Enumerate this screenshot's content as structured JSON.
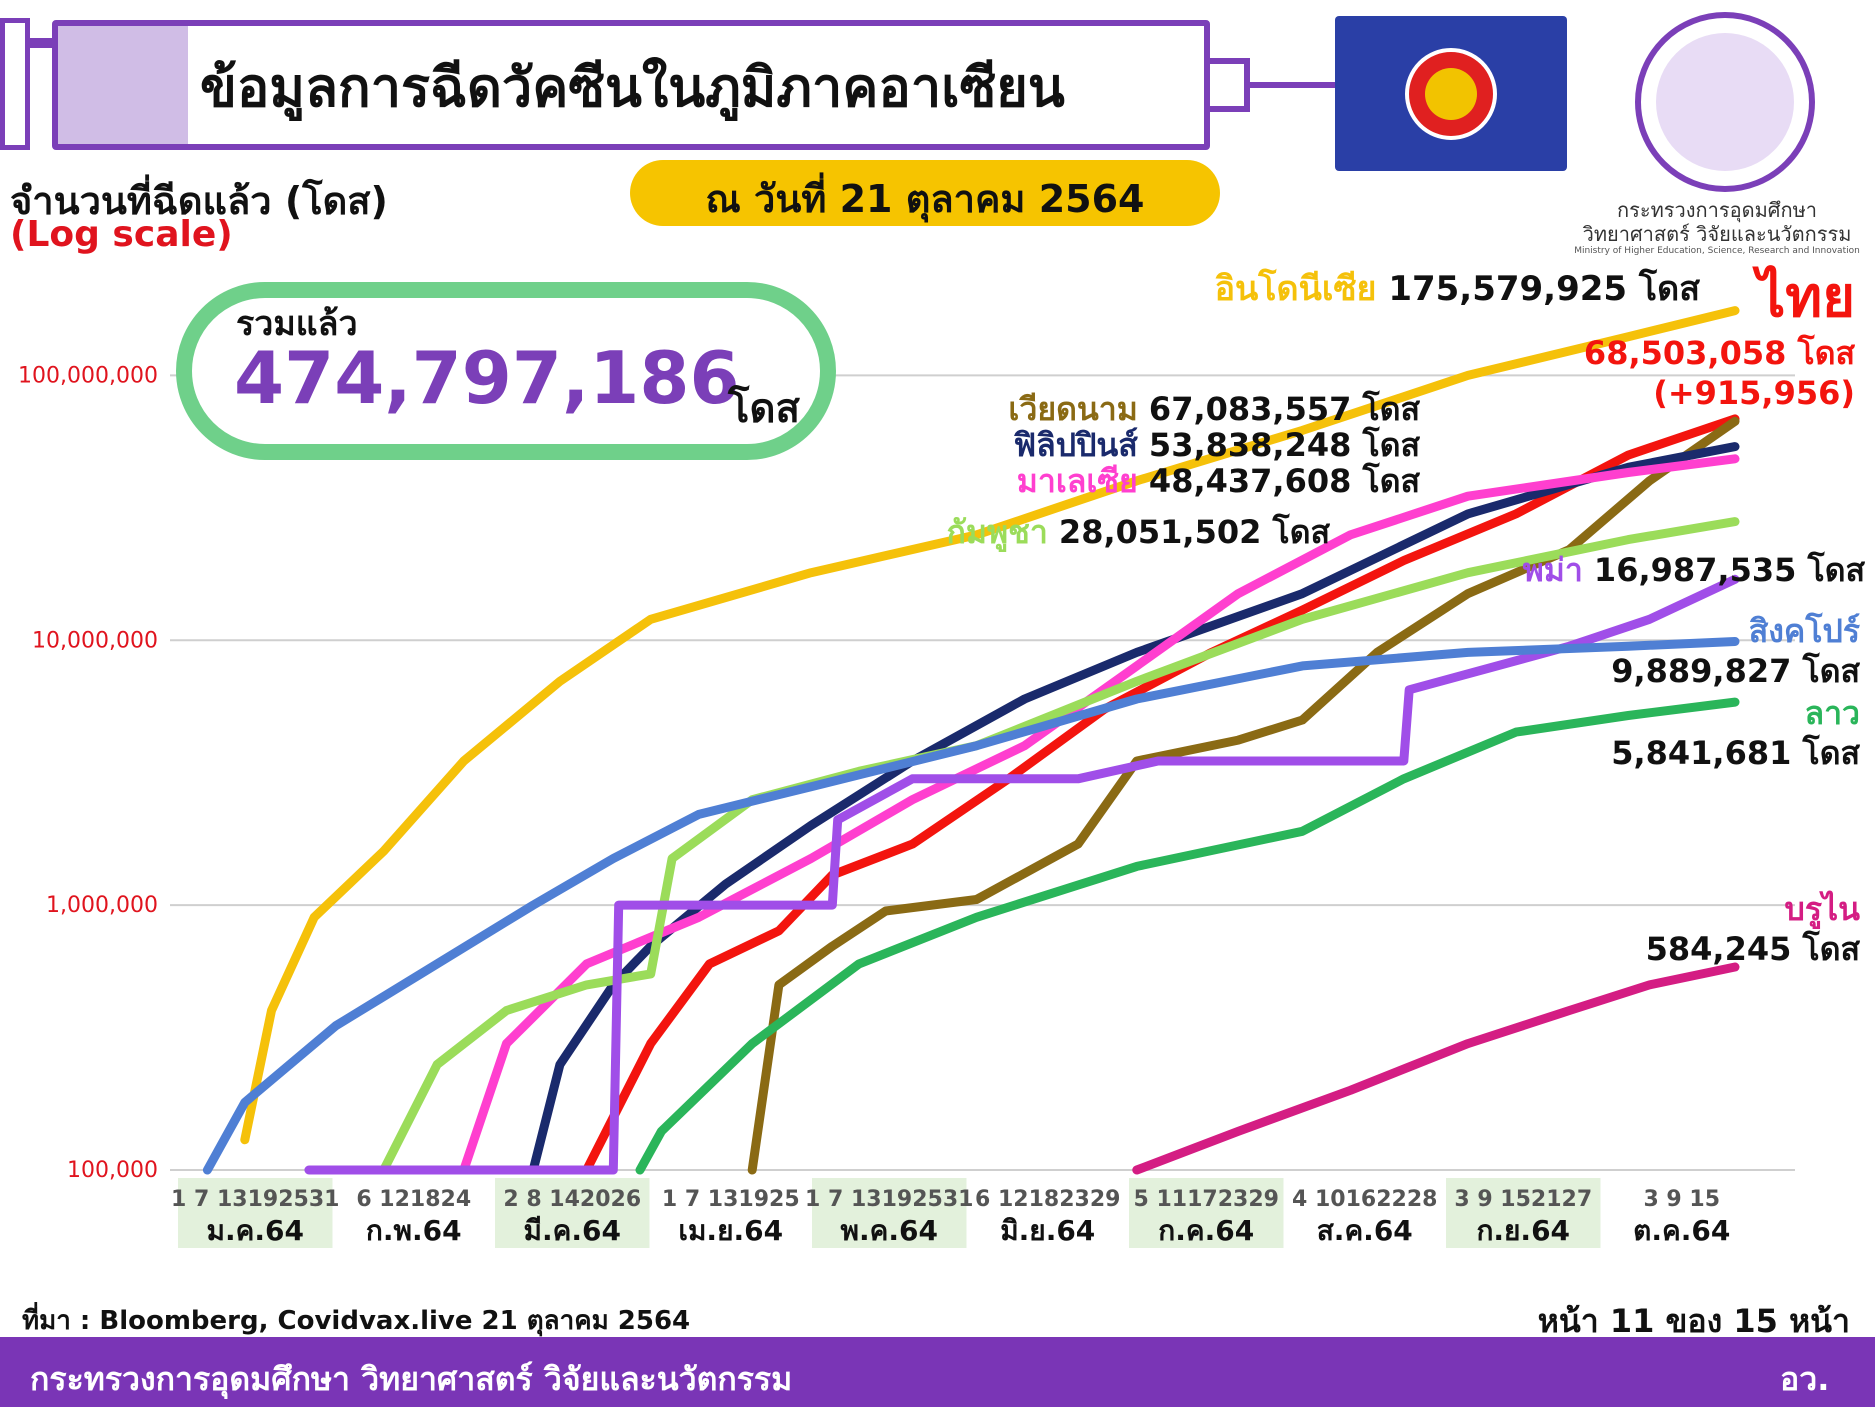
{
  "header": {
    "title": "ข้อมูลการฉีดวัคซีนในภูมิภาคอาเซียน"
  },
  "ministry": {
    "name_line1": "กระทรวงการอุดมศึกษา",
    "name_line2": "วิทยาศาสตร์ วิจัยและนวัตกรรม",
    "name_en": "Ministry of Higher Education, Science, Research and Innovation"
  },
  "axis": {
    "ylabel": "จำนวนที่ฉีดแล้ว (โดส)",
    "scale_note": "(Log scale)"
  },
  "date": "ณ วันที่ 21 ตุลาคม 2564",
  "total": {
    "label": "รวมแล้ว",
    "value": "474,797,186",
    "unit": "โดส"
  },
  "footer": {
    "source": "ที่มา : Bloomberg, Covidvax.live 21 ตุลาคม 2564",
    "page": "หน้า 11 ของ 15 หน้า",
    "org": "กระทรวงการอุดมศึกษา วิทยาศาสตร์ วิจัยและนวัตกรรม",
    "org_short": "อว."
  },
  "colors": {
    "accent_purple": "#7b3fb8",
    "asean_blue": "#2a3fa6",
    "date_pill": "#f6c400",
    "total_border": "#6fd08a",
    "footer": "#7a35b6"
  },
  "chart_data": {
    "type": "line",
    "yscale": "log",
    "ylim": [
      100000,
      250000000
    ],
    "yticks": [
      100000,
      1000000,
      10000000,
      100000000
    ],
    "ytick_labels": [
      "100,000",
      "1,000,000",
      "10,000,000",
      "100,000,000"
    ],
    "xlim": [
      "2021-01-01",
      "2021-10-21"
    ],
    "months": [
      {
        "label": "ม.ค.64",
        "ticks": "1  7 13192531",
        "shaded": true
      },
      {
        "label": "ก.พ.64",
        "ticks": "6 121824",
        "shaded": false
      },
      {
        "label": "มี.ค.64",
        "ticks": "2  8 142026",
        "shaded": true
      },
      {
        "label": "เม.ย.64",
        "ticks": "1  7 131925",
        "shaded": false
      },
      {
        "label": "พ.ค.64",
        "ticks": "1  7 13192531",
        "shaded": true
      },
      {
        "label": "มิ.ย.64",
        "ticks": "6 12182329",
        "shaded": false
      },
      {
        "label": "ก.ค.64",
        "ticks": "5 11172329",
        "shaded": true
      },
      {
        "label": "ส.ค.64",
        "ticks": "4 10162228",
        "shaded": false
      },
      {
        "label": "ก.ย.64",
        "ticks": "3  9 152127",
        "shaded": true
      },
      {
        "label": "ต.ค.64",
        "ticks": "3  9 15",
        "shaded": false
      }
    ],
    "series": [
      {
        "name": "อินโดนีเซีย",
        "value_label": "175,579,925 โดส",
        "color": "#f5c10a",
        "points": [
          [
            "2021-01-15",
            130000
          ],
          [
            "2021-01-20",
            400000
          ],
          [
            "2021-01-28",
            900000
          ],
          [
            "2021-02-10",
            1600000
          ],
          [
            "2021-02-25",
            3500000
          ],
          [
            "2021-03-15",
            7000000
          ],
          [
            "2021-04-01",
            12000000
          ],
          [
            "2021-05-01",
            18000000
          ],
          [
            "2021-06-01",
            25000000
          ],
          [
            "2021-07-01",
            40000000
          ],
          [
            "2021-08-01",
            62000000
          ],
          [
            "2021-09-01",
            100000000
          ],
          [
            "2021-10-01",
            140000000
          ],
          [
            "2021-10-21",
            175579925
          ]
        ]
      },
      {
        "name": "ไทย",
        "value_label": "68,503,058 โดส",
        "change": "(+915,956)",
        "color": "#f3140e",
        "points": [
          [
            "2021-03-20",
            100000
          ],
          [
            "2021-04-01",
            300000
          ],
          [
            "2021-04-12",
            600000
          ],
          [
            "2021-04-25",
            800000
          ],
          [
            "2021-05-05",
            1300000
          ],
          [
            "2021-05-20",
            1700000
          ],
          [
            "2021-06-07",
            3000000
          ],
          [
            "2021-06-25",
            5500000
          ],
          [
            "2021-07-15",
            9000000
          ],
          [
            "2021-08-01",
            13000000
          ],
          [
            "2021-08-20",
            20000000
          ],
          [
            "2021-09-10",
            30000000
          ],
          [
            "2021-10-01",
            50000000
          ],
          [
            "2021-10-21",
            68503058
          ]
        ]
      },
      {
        "name": "เวียดนาม",
        "value_label": "67,083,557 โดส",
        "color": "#8a6a14",
        "points": [
          [
            "2021-04-20",
            100000
          ],
          [
            "2021-04-25",
            500000
          ],
          [
            "2021-05-05",
            700000
          ],
          [
            "2021-05-15",
            950000
          ],
          [
            "2021-06-01",
            1050000
          ],
          [
            "2021-06-20",
            1700000
          ],
          [
            "2021-07-01",
            3500000
          ],
          [
            "2021-07-20",
            4200000
          ],
          [
            "2021-08-01",
            5000000
          ],
          [
            "2021-08-15",
            9000000
          ],
          [
            "2021-09-01",
            15000000
          ],
          [
            "2021-09-20",
            22000000
          ],
          [
            "2021-10-05",
            40000000
          ],
          [
            "2021-10-21",
            67083557
          ]
        ]
      },
      {
        "name": "ฟิลิปปินส์",
        "value_label": "53,838,248 โดส",
        "color": "#1a2a6c",
        "points": [
          [
            "2021-03-10",
            100000
          ],
          [
            "2021-03-15",
            250000
          ],
          [
            "2021-03-25",
            500000
          ],
          [
            "2021-04-01",
            700000
          ],
          [
            "2021-04-15",
            1200000
          ],
          [
            "2021-05-01",
            2000000
          ],
          [
            "2021-05-20",
            3500000
          ],
          [
            "2021-06-10",
            6000000
          ],
          [
            "2021-07-01",
            9000000
          ],
          [
            "2021-08-01",
            15000000
          ],
          [
            "2021-09-01",
            30000000
          ],
          [
            "2021-10-01",
            45000000
          ],
          [
            "2021-10-21",
            53838248
          ]
        ]
      },
      {
        "name": "มาเลเซีย",
        "value_label": "48,437,608 โดส",
        "color": "#ff3fcf",
        "points": [
          [
            "2021-02-25",
            100000
          ],
          [
            "2021-03-05",
            300000
          ],
          [
            "2021-03-20",
            600000
          ],
          [
            "2021-04-10",
            900000
          ],
          [
            "2021-05-01",
            1500000
          ],
          [
            "2021-05-20",
            2500000
          ],
          [
            "2021-06-10",
            4000000
          ],
          [
            "2021-07-01",
            8000000
          ],
          [
            "2021-07-20",
            15000000
          ],
          [
            "2021-08-10",
            25000000
          ],
          [
            "2021-09-01",
            35000000
          ],
          [
            "2021-10-01",
            43000000
          ],
          [
            "2021-10-21",
            48437608
          ]
        ]
      },
      {
        "name": "กัมพูชา",
        "value_label": "28,051,502 โดส",
        "color": "#9bdc5a",
        "points": [
          [
            "2021-02-10",
            100000
          ],
          [
            "2021-02-20",
            250000
          ],
          [
            "2021-03-05",
            400000
          ],
          [
            "2021-03-20",
            500000
          ],
          [
            "2021-04-01",
            550000
          ],
          [
            "2021-04-05",
            1500000
          ],
          [
            "2021-04-20",
            2500000
          ],
          [
            "2021-05-10",
            3200000
          ],
          [
            "2021-06-01",
            4000000
          ],
          [
            "2021-07-01",
            7000000
          ],
          [
            "2021-08-01",
            12000000
          ],
          [
            "2021-09-01",
            18000000
          ],
          [
            "2021-10-01",
            24000000
          ],
          [
            "2021-10-21",
            28051502
          ]
        ]
      },
      {
        "name": "พม่า",
        "value_label": "16,987,535 โดส",
        "color": "#a04ee8",
        "points": [
          [
            "2021-01-27",
            100000
          ],
          [
            "2021-03-25",
            100000
          ],
          [
            "2021-03-26",
            1000000
          ],
          [
            "2021-05-05",
            1000000
          ],
          [
            "2021-05-06",
            2100000
          ],
          [
            "2021-05-20",
            3000000
          ],
          [
            "2021-06-20",
            3000000
          ],
          [
            "2021-07-05",
            3500000
          ],
          [
            "2021-08-20",
            3500000
          ],
          [
            "2021-08-21",
            6500000
          ],
          [
            "2021-09-20",
            9500000
          ],
          [
            "2021-10-05",
            12000000
          ],
          [
            "2021-10-21",
            16987535
          ]
        ]
      },
      {
        "name": "สิงคโปร์",
        "value_label": "9,889,827 โดส",
        "color": "#4f7fd4",
        "points": [
          [
            "2021-01-08",
            100000
          ],
          [
            "2021-01-15",
            180000
          ],
          [
            "2021-02-01",
            350000
          ],
          [
            "2021-02-20",
            600000
          ],
          [
            "2021-03-10",
            1000000
          ],
          [
            "2021-03-25",
            1500000
          ],
          [
            "2021-04-10",
            2200000
          ],
          [
            "2021-05-01",
            2800000
          ],
          [
            "2021-06-01",
            4000000
          ],
          [
            "2021-07-01",
            6000000
          ],
          [
            "2021-08-01",
            8000000
          ],
          [
            "2021-09-01",
            9000000
          ],
          [
            "2021-10-01",
            9500000
          ],
          [
            "2021-10-21",
            9889827
          ]
        ]
      },
      {
        "name": "ลาว",
        "value_label": "5,841,681 โดส",
        "color": "#2ab55a",
        "points": [
          [
            "2021-03-30",
            100000
          ],
          [
            "2021-04-03",
            140000
          ],
          [
            "2021-04-20",
            300000
          ],
          [
            "2021-05-10",
            600000
          ],
          [
            "2021-06-01",
            900000
          ],
          [
            "2021-07-01",
            1400000
          ],
          [
            "2021-08-01",
            1900000
          ],
          [
            "2021-08-20",
            3000000
          ],
          [
            "2021-09-10",
            4500000
          ],
          [
            "2021-10-01",
            5200000
          ],
          [
            "2021-10-21",
            5841681
          ]
        ]
      },
      {
        "name": "บรูไน",
        "value_label": "584,245 โดส",
        "color": "#d41d83",
        "points": [
          [
            "2021-07-01",
            100000
          ],
          [
            "2021-07-20",
            140000
          ],
          [
            "2021-08-10",
            200000
          ],
          [
            "2021-09-01",
            300000
          ],
          [
            "2021-09-20",
            400000
          ],
          [
            "2021-10-05",
            500000
          ],
          [
            "2021-10-21",
            584245
          ]
        ]
      }
    ]
  }
}
